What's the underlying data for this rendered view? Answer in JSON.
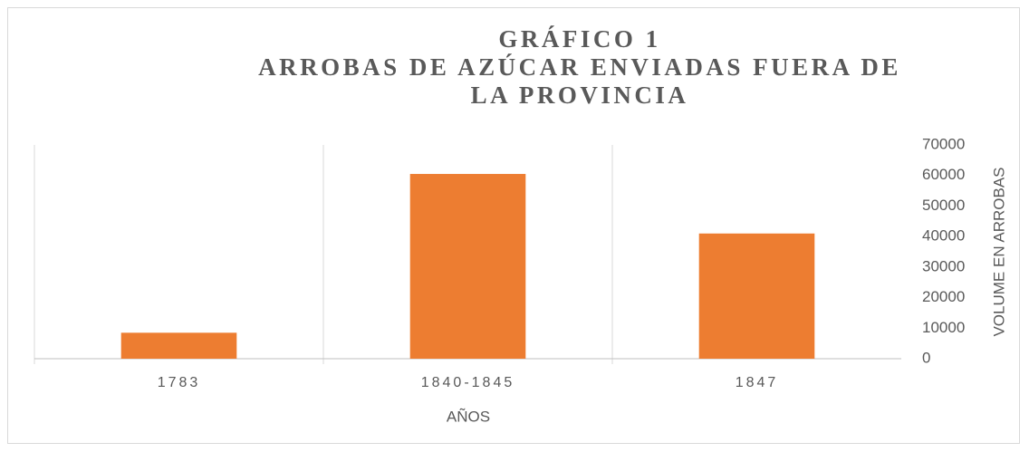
{
  "chart_data": {
    "type": "bar",
    "title": "GRÁFICO 1",
    "subtitle": "ARROBAS DE AZÚCAR ENVIADAS FUERA DE LA PROVINCIA",
    "categories": [
      "1783",
      "1840-1845",
      "1847"
    ],
    "values": [
      8500,
      60500,
      41000
    ],
    "color": "#ed7d31",
    "x_label": "AÑOS",
    "y_label": "VOLUME EN ARROBAS",
    "ylim": [
      0,
      70000
    ],
    "yticks": [
      0,
      10000,
      20000,
      30000,
      40000,
      50000,
      60000,
      70000
    ],
    "grid": false
  }
}
